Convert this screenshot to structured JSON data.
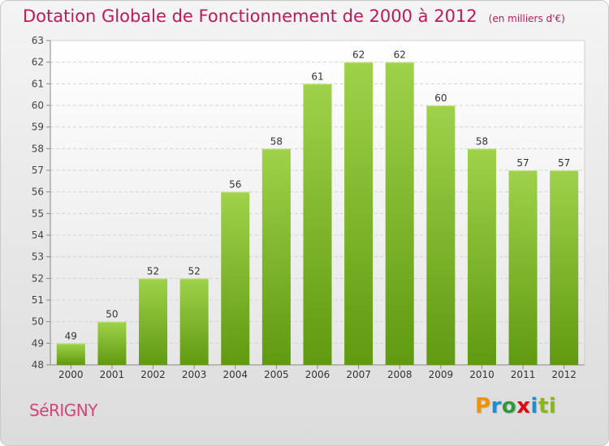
{
  "header": {
    "title": "Dotation Globale de Fonctionnement de 2000 à 2012",
    "unit": "(en milliers d'€)"
  },
  "footer": {
    "commune": "SéRIGNY",
    "brand_letters": [
      "P",
      "r",
      "o",
      "x",
      "i",
      "ti"
    ]
  },
  "colors": {
    "title": "#c2185b",
    "bar_top": "#9fd24a",
    "bar_bottom": "#5f9a10"
  },
  "chart_data": {
    "type": "bar",
    "title": "Dotation Globale de Fonctionnement de 2000 à 2012",
    "subtitle": "(en milliers d'€)",
    "categories": [
      "2000",
      "2001",
      "2002",
      "2003",
      "2004",
      "2005",
      "2006",
      "2007",
      "2008",
      "2009",
      "2010",
      "2011",
      "2012"
    ],
    "values": [
      49,
      50,
      52,
      52,
      56,
      58,
      61,
      62,
      62,
      60,
      58,
      57,
      57
    ],
    "ylim": [
      48,
      63
    ],
    "yticks": [
      48,
      49,
      50,
      51,
      52,
      53,
      54,
      55,
      56,
      57,
      58,
      59,
      60,
      61,
      62,
      63
    ],
    "grid": true,
    "data_labels": true
  }
}
